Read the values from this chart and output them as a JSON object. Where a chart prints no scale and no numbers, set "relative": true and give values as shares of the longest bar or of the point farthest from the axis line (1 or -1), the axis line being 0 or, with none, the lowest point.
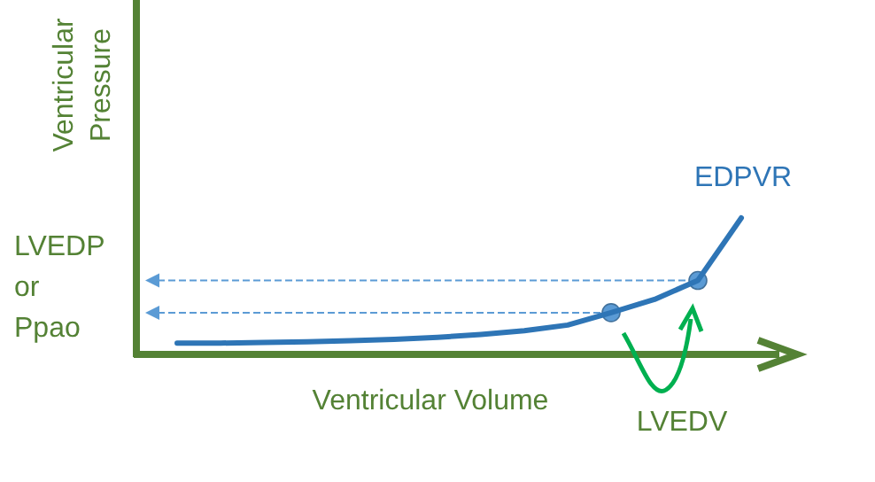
{
  "chart_data": {
    "type": "line",
    "relative": true,
    "xlabel": "Ventricular Volume",
    "ylabel": "Ventricular Pressure",
    "categories": [
      null,
      null,
      null,
      null,
      null,
      null,
      null,
      null,
      null,
      null,
      null,
      null,
      null,
      null
    ],
    "series": [
      {
        "name": "EDPVR",
        "color": "#2e75b6",
        "values": [
          0.083,
          0.083,
          0.0875,
          0.093,
          0.1,
          0.111,
          0.125,
          0.146,
          0.174,
          0.215,
          0.306,
          0.403,
          0.542,
          1
        ]
      }
    ],
    "ref_lines": [
      {
        "axis": "y",
        "value": 0.542,
        "color": "#5b9bd5",
        "line_style": "dashed"
      },
      {
        "axis": "y",
        "value": 0.306,
        "color": "#5b9bd5",
        "line_style": "dashed"
      }
    ],
    "annotations": [
      "LVEDP or Ppao",
      "LVEDV"
    ],
    "marker": "none"
  }
}
